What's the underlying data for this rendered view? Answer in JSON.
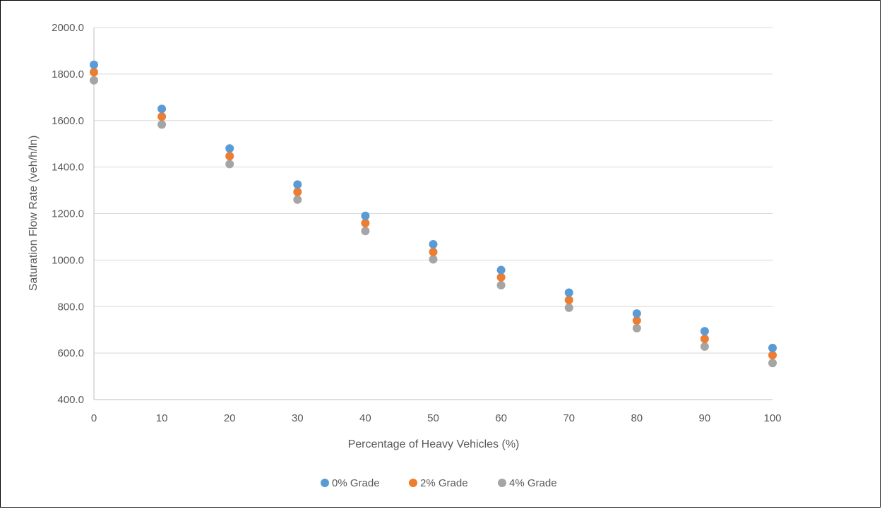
{
  "chart_data": {
    "type": "scatter",
    "title": "",
    "xlabel": "Percentage of Heavy Vehicles (%)",
    "ylabel": "Saturation Flow Rate (veh/h/ln)",
    "xlim": [
      0,
      100
    ],
    "ylim": [
      400,
      2000
    ],
    "x_ticks": [
      0,
      10,
      20,
      30,
      40,
      50,
      60,
      70,
      80,
      90,
      100
    ],
    "y_ticks": [
      400,
      600,
      800,
      1000,
      1200,
      1400,
      1600,
      1800,
      2000
    ],
    "y_tick_labels": [
      "400.0",
      "600.0",
      "800.0",
      "1000.0",
      "1200.0",
      "1400.0",
      "1600.0",
      "1800.0",
      "2000.0"
    ],
    "grid": true,
    "legend_position": "bottom",
    "x": [
      0,
      10,
      20,
      30,
      40,
      50,
      60,
      70,
      80,
      90,
      100
    ],
    "series": [
      {
        "name": "0% Grade",
        "color": "#5B9BD5",
        "values": [
          1840,
          1650,
          1480,
          1325,
          1190,
          1068,
          957,
          860,
          770,
          694,
          622
        ]
      },
      {
        "name": "2% Grade",
        "color": "#ED7D31",
        "values": [
          1808,
          1617,
          1447,
          1293,
          1159,
          1035,
          926,
          828,
          740,
          661,
          591
        ]
      },
      {
        "name": "4% Grade",
        "color": "#A5A5A5",
        "values": [
          1773,
          1583,
          1413,
          1260,
          1125,
          1003,
          892,
          795,
          707,
          628,
          557
        ]
      }
    ]
  }
}
